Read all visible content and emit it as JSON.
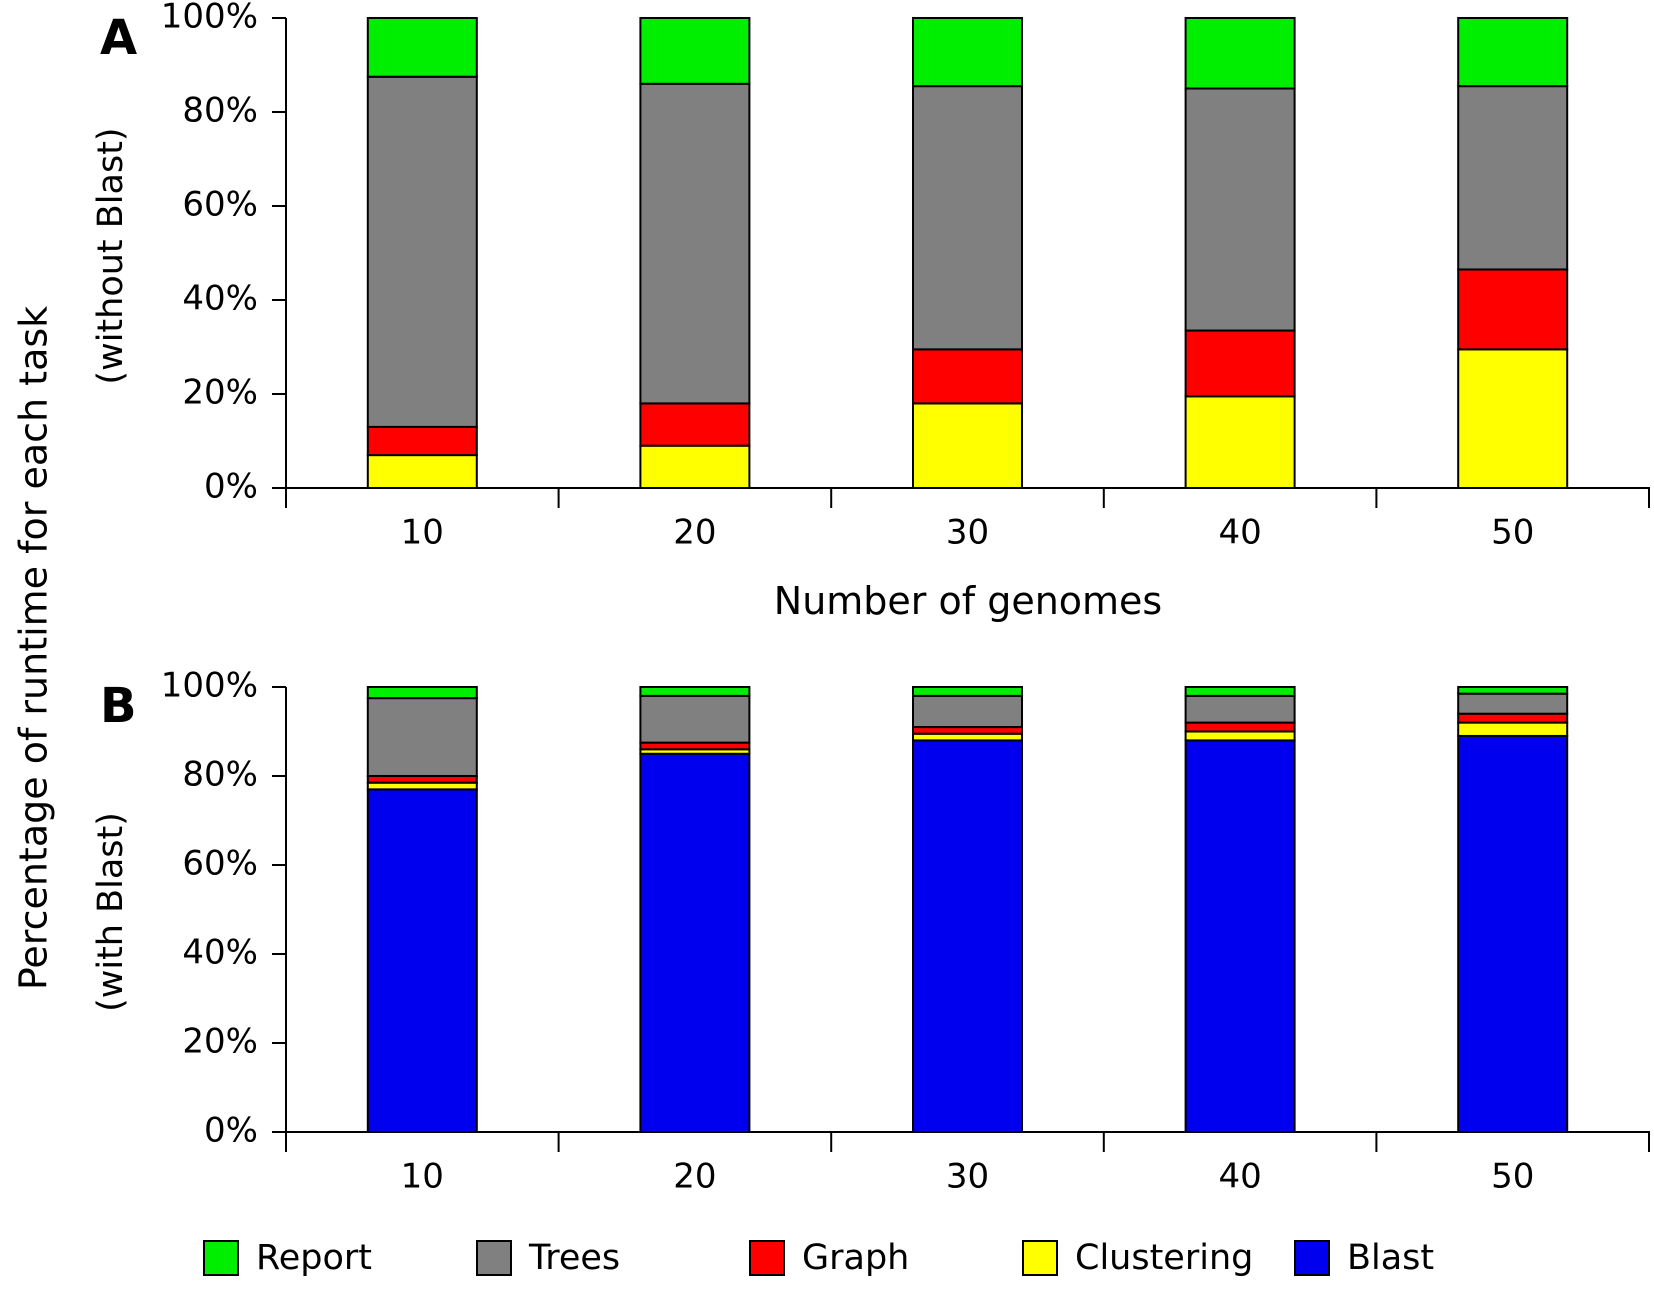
{
  "ylabel": "Percentage of runtime for each task",
  "legend": [
    {
      "name": "Report",
      "color": "#00ee00"
    },
    {
      "name": "Trees",
      "color": "#808080"
    },
    {
      "name": "Graph",
      "color": "#ff0000"
    },
    {
      "name": "Clustering",
      "color": "#ffff00"
    },
    {
      "name": "Blast",
      "color": "#0000ee"
    }
  ],
  "chart_data": [
    {
      "type": "bar",
      "stacked": true,
      "panel": "A",
      "ylabel": "(without Blast)",
      "xlabel": "Number of genomes",
      "categories": [
        "10",
        "20",
        "30",
        "40",
        "50"
      ],
      "yticks": [
        "0%",
        "20%",
        "40%",
        "60%",
        "80%",
        "100%"
      ],
      "ylim": [
        0,
        100
      ],
      "series": [
        {
          "name": "Clustering",
          "values": [
            7,
            9,
            18,
            19.5,
            29.5
          ]
        },
        {
          "name": "Graph",
          "values": [
            6,
            9,
            11.5,
            14,
            17
          ]
        },
        {
          "name": "Trees",
          "values": [
            74.5,
            68,
            56,
            51.5,
            39
          ]
        },
        {
          "name": "Report",
          "values": [
            12.5,
            14,
            14.5,
            15,
            14.5
          ]
        }
      ]
    },
    {
      "type": "bar",
      "stacked": true,
      "panel": "B",
      "ylabel": "(with Blast)",
      "xlabel": "",
      "categories": [
        "10",
        "20",
        "30",
        "40",
        "50"
      ],
      "yticks": [
        "0%",
        "20%",
        "40%",
        "60%",
        "80%",
        "100%"
      ],
      "ylim": [
        0,
        100
      ],
      "series": [
        {
          "name": "Blast",
          "values": [
            77,
            85,
            88,
            88,
            89
          ]
        },
        {
          "name": "Clustering",
          "values": [
            1.5,
            1,
            1.5,
            2,
            3
          ]
        },
        {
          "name": "Graph",
          "values": [
            1.5,
            1.5,
            1.5,
            2,
            2
          ]
        },
        {
          "name": "Trees",
          "values": [
            17.5,
            10.5,
            7,
            6,
            4.5
          ]
        },
        {
          "name": "Report",
          "values": [
            2.5,
            2,
            2,
            2,
            1.5
          ]
        }
      ]
    }
  ]
}
